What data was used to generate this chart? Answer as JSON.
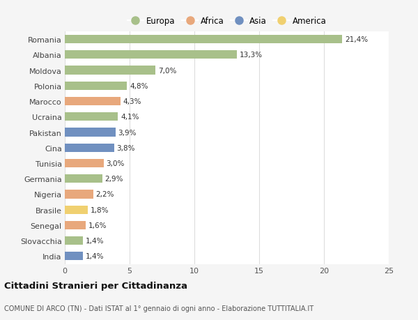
{
  "countries": [
    "Romania",
    "Albania",
    "Moldova",
    "Polonia",
    "Marocco",
    "Ucraina",
    "Pakistan",
    "Cina",
    "Tunisia",
    "Germania",
    "Nigeria",
    "Brasile",
    "Senegal",
    "Slovacchia",
    "India"
  ],
  "values": [
    21.4,
    13.3,
    7.0,
    4.8,
    4.3,
    4.1,
    3.9,
    3.8,
    3.0,
    2.9,
    2.2,
    1.8,
    1.6,
    1.4,
    1.4
  ],
  "labels": [
    "21,4%",
    "13,3%",
    "7,0%",
    "4,8%",
    "4,3%",
    "4,1%",
    "3,9%",
    "3,8%",
    "3,0%",
    "2,9%",
    "2,2%",
    "1,8%",
    "1,6%",
    "1,4%",
    "1,4%"
  ],
  "continents": [
    "Europa",
    "Europa",
    "Europa",
    "Europa",
    "Africa",
    "Europa",
    "Asia",
    "Asia",
    "Africa",
    "Europa",
    "Africa",
    "America",
    "Africa",
    "Europa",
    "Asia"
  ],
  "colors": {
    "Europa": "#a8c08a",
    "Africa": "#e8a87c",
    "Asia": "#7090c0",
    "America": "#f0d070"
  },
  "legend_order": [
    "Europa",
    "Africa",
    "Asia",
    "America"
  ],
  "xlim": [
    0,
    25
  ],
  "xticks": [
    0,
    5,
    10,
    15,
    20,
    25
  ],
  "title": "Cittadini Stranieri per Cittadinanza",
  "subtitle": "COMUNE DI ARCO (TN) - Dati ISTAT al 1° gennaio di ogni anno - Elaborazione TUTTITALIA.IT",
  "background_color": "#f5f5f5",
  "bar_background": "#ffffff",
  "grid_color": "#dddddd"
}
